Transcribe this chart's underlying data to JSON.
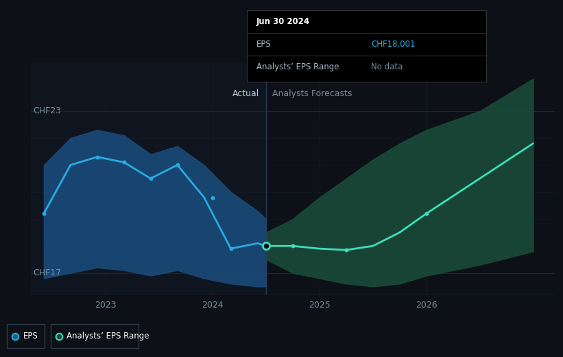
{
  "bg_color": "#0d1117",
  "plot_bg_color": "#0d1117",
  "grid_color": "#1e2a3a",
  "ylabel_top": "CHF23",
  "ylabel_bottom": "CHF17",
  "ylim": [
    16.2,
    24.8
  ],
  "xlim_min": 2022.3,
  "xlim_max": 2027.2,
  "divider_x": 2024.5,
  "actual_label": "Actual",
  "forecast_label": "Analysts Forecasts",
  "label_color": "#7a8fa0",
  "actual_label_color": "#c0cdd8",
  "eps_line_color": "#29abe2",
  "eps_line_color_forecast": "#3de0b8",
  "eps_fill_color_actual": "#1a4a7a",
  "eps_fill_color_forecast": "#1a4a3a",
  "eps_x": [
    2022.42,
    2022.67,
    2022.92,
    2023.17,
    2023.42,
    2023.67,
    2023.92,
    2024.17,
    2024.42,
    2024.5
  ],
  "eps_y": [
    19.2,
    21.0,
    21.3,
    21.1,
    20.5,
    21.0,
    19.8,
    17.9,
    18.1,
    18.0
  ],
  "eps_fill_upper_actual": [
    21.0,
    22.0,
    22.3,
    22.1,
    21.4,
    21.7,
    21.0,
    20.0,
    19.3,
    19.0
  ],
  "eps_fill_lower_actual": [
    16.8,
    17.0,
    17.2,
    17.1,
    16.9,
    17.1,
    16.8,
    16.6,
    16.5,
    16.5
  ],
  "forecast_x": [
    2024.5,
    2024.75,
    2025.0,
    2025.25,
    2025.5,
    2025.75,
    2026.0,
    2026.5,
    2027.0
  ],
  "forecast_y": [
    18.0,
    18.0,
    17.9,
    17.85,
    18.0,
    18.5,
    19.2,
    20.5,
    21.8
  ],
  "forecast_upper": [
    18.5,
    19.0,
    19.8,
    20.5,
    21.2,
    21.8,
    22.3,
    23.0,
    24.2
  ],
  "forecast_lower": [
    17.5,
    17.0,
    16.8,
    16.6,
    16.5,
    16.6,
    16.9,
    17.3,
    17.8
  ],
  "tooltip_date": "Jun 30 2024",
  "tooltip_eps_label": "EPS",
  "tooltip_eps_value": "CHF18.001",
  "tooltip_range_label": "Analysts’ EPS Range",
  "tooltip_range_value": "No data",
  "tooltip_eps_color": "#29abe2",
  "tooltip_bg": "#000000",
  "tooltip_border": "#333333",
  "tick_years": [
    2023,
    2024,
    2025,
    2026
  ],
  "tick_color": "#7a8fa0",
  "axis_color": "#2a3a4a",
  "legend_eps_color": "#29abe2",
  "legend_range_color": "#3de0b8",
  "legend_box_bg": "#0d1117",
  "legend_box_border": "#2a3a4a",
  "divider_color": "#2a4060"
}
